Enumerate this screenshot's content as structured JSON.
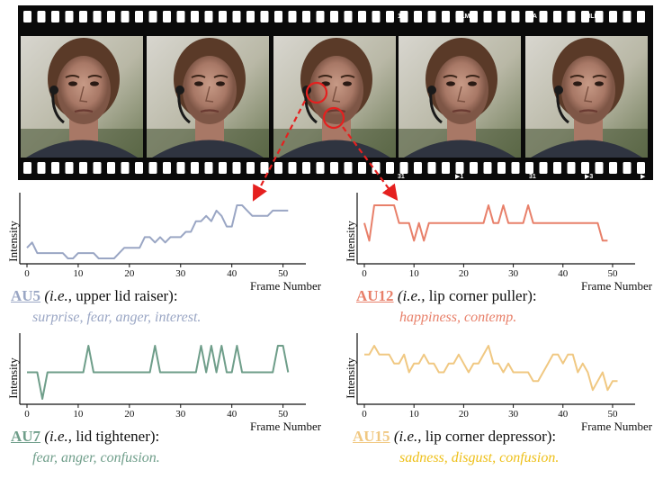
{
  "film": {
    "top_labels": [
      "1A",
      "FILM",
      "1A",
      "FILM",
      "2"
    ],
    "bottom_labels": [
      "31",
      "▶1",
      "31",
      "▶3",
      "▶"
    ]
  },
  "colors": {
    "au5": "#9aa6c4",
    "au12": "#e8806a",
    "au7": "#6f9e8a",
    "au15": "#f0c882",
    "au15_text": "#eec01a",
    "marker": "#e5201f"
  },
  "xaxis": {
    "label": "Frame Number",
    "ticks": [
      "0",
      "10",
      "20",
      "30",
      "40",
      "50"
    ]
  },
  "yaxis": {
    "label": "Intensity"
  },
  "captions": {
    "au5": {
      "code": "AU5",
      "ie": "(i.e.,",
      "desc": " upper lid raiser):",
      "emotions": "surprise, fear, anger, interest."
    },
    "au12": {
      "code": "AU12",
      "ie": "(i.e.,",
      "desc": " lip corner puller):",
      "emotions": "happiness, contemp."
    },
    "au7": {
      "code": "AU7",
      "ie": "(i.e.,",
      "desc": " lid tightener):",
      "emotions": "fear, anger, confusion."
    },
    "au15": {
      "code": "AU15",
      "ie": "(i.e.,",
      "desc": " lip corner depressor):",
      "emotions": "sadness, disgust, confusion."
    }
  },
  "chart_data": [
    {
      "type": "line",
      "series": [
        {
          "name": "AU5",
          "values": [
            2,
            3,
            1,
            1,
            1,
            1,
            1,
            1,
            0,
            0,
            1,
            1,
            1,
            1,
            0,
            0,
            0,
            0,
            1,
            2,
            2,
            2,
            2,
            4,
            4,
            3,
            4,
            3,
            4,
            4,
            4,
            5,
            5,
            7,
            7,
            8,
            7,
            9,
            8,
            6,
            6,
            10,
            10,
            9,
            8,
            8,
            8,
            8,
            9,
            9,
            9,
            9
          ]
        }
      ],
      "x": "0..51",
      "xlim": [
        0,
        52
      ],
      "ylim": [
        0,
        10
      ]
    },
    {
      "type": "line",
      "series": [
        {
          "name": "AU12",
          "values": [
            2,
            1,
            3,
            3,
            3,
            3,
            3,
            2,
            2,
            2,
            1,
            2,
            1,
            2,
            2,
            2,
            2,
            2,
            2,
            2,
            2,
            2,
            2,
            2,
            2,
            3,
            2,
            2,
            3,
            2,
            2,
            2,
            2,
            3,
            2,
            2,
            2,
            2,
            2,
            2,
            2,
            2,
            2,
            2,
            2,
            2,
            2,
            2,
            1,
            1
          ]
        }
      ],
      "x": "0..49",
      "xlim": [
        0,
        52
      ],
      "ylim": [
        0,
        3
      ]
    },
    {
      "type": "line",
      "series": [
        {
          "name": "AU7",
          "values": [
            1,
            1,
            1,
            0,
            1,
            1,
            1,
            1,
            1,
            1,
            1,
            1,
            2,
            1,
            1,
            1,
            1,
            1,
            1,
            1,
            1,
            1,
            1,
            1,
            1,
            2,
            1,
            1,
            1,
            1,
            1,
            1,
            1,
            1,
            2,
            1,
            2,
            1,
            2,
            1,
            1,
            2,
            1,
            1,
            1,
            1,
            1,
            1,
            1,
            2,
            2,
            1
          ]
        }
      ],
      "x": "0..51",
      "xlim": [
        0,
        52
      ],
      "ylim": [
        0,
        2
      ]
    },
    {
      "type": "line",
      "series": [
        {
          "name": "AU15",
          "values": [
            5,
            5,
            6,
            5,
            5,
            5,
            4,
            4,
            5,
            3,
            4,
            4,
            5,
            4,
            4,
            3,
            3,
            4,
            4,
            5,
            4,
            3,
            4,
            4,
            5,
            6,
            4,
            4,
            3,
            4,
            3,
            3,
            3,
            3,
            2,
            2,
            3,
            4,
            5,
            5,
            4,
            5,
            5,
            3,
            4,
            3,
            1,
            2,
            3,
            1,
            2,
            2
          ]
        }
      ],
      "x": "0..51",
      "xlim": [
        0,
        52
      ],
      "ylim": [
        0,
        6
      ]
    }
  ]
}
